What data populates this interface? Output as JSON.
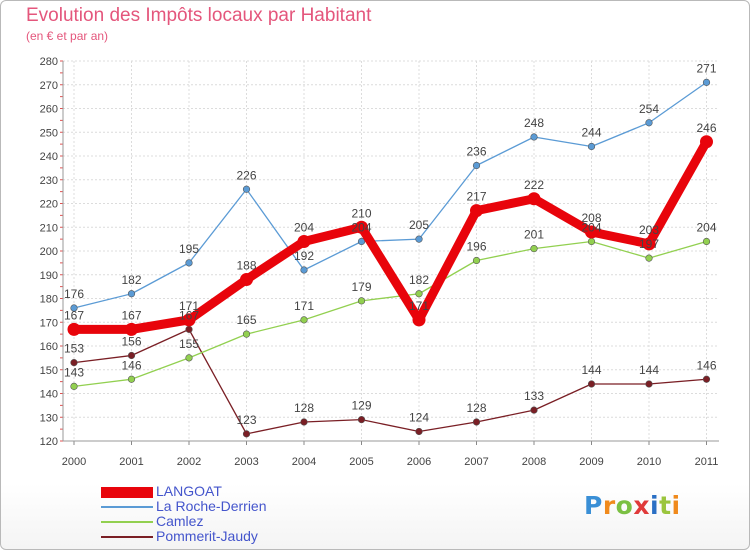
{
  "header": {
    "title": "Evolution des Impôts locaux par Habitant",
    "subtitle": "(en € et par an)"
  },
  "chart_data": {
    "type": "line",
    "title": "Evolution des Impôts locaux par Habitant",
    "subtitle": "(en € et par an)",
    "xlabel": "",
    "ylabel": "",
    "categories": [
      "2000",
      "2001",
      "2002",
      "2003",
      "2004",
      "2005",
      "2006",
      "2007",
      "2008",
      "2009",
      "2010",
      "2011"
    ],
    "ylim": [
      120,
      280
    ],
    "yticks": [
      120,
      130,
      140,
      150,
      160,
      170,
      180,
      190,
      200,
      210,
      220,
      230,
      240,
      250,
      260,
      270,
      280
    ],
    "grid": true,
    "legend_position": "bottom-left",
    "series": [
      {
        "name": "LANGOAT",
        "color": "#e8040b",
        "values": [
          167,
          167,
          171,
          188,
          204,
          210,
          171,
          217,
          222,
          208,
          203,
          246
        ]
      },
      {
        "name": "La Roche-Derrien",
        "color": "#5b9bd5",
        "values": [
          176,
          182,
          195,
          226,
          192,
          204,
          205,
          236,
          248,
          244,
          254,
          271
        ]
      },
      {
        "name": "Camlez",
        "color": "#92d050",
        "values": [
          143,
          146,
          155,
          165,
          171,
          179,
          182,
          196,
          201,
          204,
          197,
          204
        ]
      },
      {
        "name": "Pommerit-Jaudy",
        "color": "#7a1f25",
        "values": [
          153,
          156,
          167,
          123,
          128,
          129,
          124,
          128,
          133,
          144,
          144,
          146
        ]
      }
    ]
  },
  "logo": {
    "letters": [
      "P",
      "r",
      "o",
      "x",
      "i",
      "t",
      "i"
    ]
  }
}
